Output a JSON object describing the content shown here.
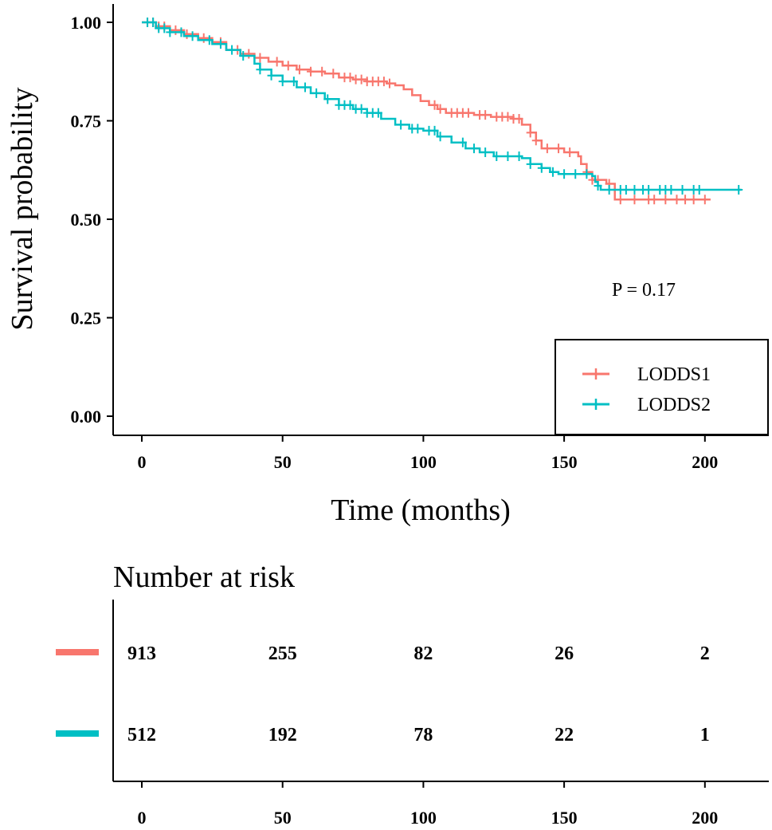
{
  "chart_data": {
    "type": "line",
    "title": "",
    "xlabel": "Time (months)",
    "ylabel": "Survival probability",
    "xlim": [
      0,
      213
    ],
    "ylim": [
      0,
      1
    ],
    "xticks": [
      0,
      50,
      100,
      150,
      200
    ],
    "yticks": [
      0,
      0.25,
      0.5,
      0.75,
      1.0
    ],
    "ytick_labels": [
      "0.00",
      "0.25",
      "0.50",
      "0.75",
      "1.00"
    ],
    "annotation": "P = 0.17",
    "legend_position": "bottom-right",
    "series": [
      {
        "name": "LODDS1",
        "color": "#F8766D",
        "steps": [
          [
            0,
            1.0
          ],
          [
            5,
            0.99
          ],
          [
            10,
            0.98
          ],
          [
            15,
            0.97
          ],
          [
            20,
            0.96
          ],
          [
            25,
            0.95
          ],
          [
            30,
            0.93
          ],
          [
            35,
            0.92
          ],
          [
            40,
            0.91
          ],
          [
            45,
            0.9
          ],
          [
            50,
            0.89
          ],
          [
            55,
            0.88
          ],
          [
            60,
            0.875
          ],
          [
            65,
            0.87
          ],
          [
            70,
            0.86
          ],
          [
            75,
            0.855
          ],
          [
            80,
            0.85
          ],
          [
            87,
            0.845
          ],
          [
            90,
            0.84
          ],
          [
            93,
            0.83
          ],
          [
            96,
            0.815
          ],
          [
            99,
            0.8
          ],
          [
            102,
            0.79
          ],
          [
            105,
            0.78
          ],
          [
            108,
            0.77
          ],
          [
            118,
            0.765
          ],
          [
            124,
            0.76
          ],
          [
            132,
            0.755
          ],
          [
            135,
            0.74
          ],
          [
            138,
            0.72
          ],
          [
            140,
            0.7
          ],
          [
            142,
            0.68
          ],
          [
            150,
            0.67
          ],
          [
            155,
            0.66
          ],
          [
            156,
            0.64
          ],
          [
            158,
            0.62
          ],
          [
            160,
            0.6
          ],
          [
            165,
            0.59
          ],
          [
            168,
            0.55
          ],
          [
            202,
            0.55
          ]
        ],
        "censor_times": [
          2,
          4,
          6,
          8,
          12,
          16,
          22,
          28,
          34,
          38,
          42,
          48,
          52,
          56,
          60,
          64,
          68,
          72,
          74,
          76,
          78,
          80,
          82,
          84,
          86,
          88,
          104,
          106,
          110,
          112,
          114,
          116,
          120,
          122,
          126,
          128,
          130,
          132,
          134,
          138,
          140,
          144,
          148,
          152,
          158,
          160,
          162,
          166,
          170,
          175,
          180,
          182,
          186,
          190,
          193,
          196,
          200
        ]
      },
      {
        "name": "LODDS2",
        "color": "#00BFC4",
        "steps": [
          [
            0,
            1.0
          ],
          [
            5,
            0.985
          ],
          [
            10,
            0.975
          ],
          [
            15,
            0.965
          ],
          [
            20,
            0.955
          ],
          [
            25,
            0.945
          ],
          [
            30,
            0.93
          ],
          [
            35,
            0.915
          ],
          [
            40,
            0.895
          ],
          [
            42,
            0.88
          ],
          [
            46,
            0.865
          ],
          [
            50,
            0.85
          ],
          [
            55,
            0.835
          ],
          [
            60,
            0.82
          ],
          [
            65,
            0.805
          ],
          [
            70,
            0.79
          ],
          [
            75,
            0.78
          ],
          [
            80,
            0.77
          ],
          [
            85,
            0.755
          ],
          [
            90,
            0.74
          ],
          [
            95,
            0.73
          ],
          [
            100,
            0.725
          ],
          [
            105,
            0.71
          ],
          [
            110,
            0.695
          ],
          [
            115,
            0.68
          ],
          [
            120,
            0.67
          ],
          [
            125,
            0.66
          ],
          [
            135,
            0.655
          ],
          [
            138,
            0.64
          ],
          [
            142,
            0.63
          ],
          [
            145,
            0.62
          ],
          [
            148,
            0.615
          ],
          [
            160,
            0.61
          ],
          [
            161,
            0.595
          ],
          [
            162,
            0.585
          ],
          [
            163,
            0.575
          ],
          [
            213,
            0.575
          ]
        ],
        "censor_times": [
          2,
          4,
          6,
          8,
          10,
          14,
          18,
          24,
          28,
          32,
          36,
          42,
          46,
          50,
          54,
          58,
          62,
          66,
          70,
          72,
          74,
          76,
          78,
          80,
          82,
          84,
          92,
          96,
          98,
          102,
          104,
          106,
          114,
          118,
          122,
          126,
          130,
          134,
          138,
          142,
          146,
          150,
          154,
          158,
          162,
          166,
          170,
          172,
          175,
          178,
          180,
          184,
          186,
          188,
          192,
          196,
          198,
          212
        ]
      }
    ],
    "risk_table": {
      "title": "Number at risk",
      "times": [
        0,
        50,
        100,
        150,
        200
      ],
      "tick_labels": [
        "0",
        "50",
        "100",
        "150",
        "200"
      ],
      "rows": [
        {
          "name": "LODDS1",
          "color": "#F8766D",
          "values": [
            "913",
            "255",
            "82",
            "26",
            "2"
          ]
        },
        {
          "name": "LODDS2",
          "color": "#00BFC4",
          "values": [
            "512",
            "192",
            "78",
            "22",
            "1"
          ]
        }
      ]
    }
  }
}
